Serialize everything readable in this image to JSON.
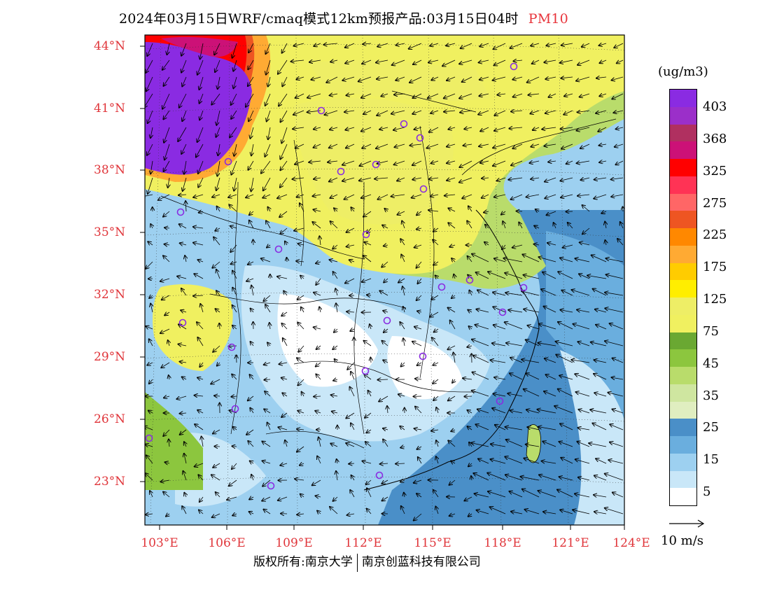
{
  "title": {
    "main": "2024年03月15日WRF/cmaq模式12km预报产品:03月15日04时",
    "product": "PM10"
  },
  "axes": {
    "lat_labels": [
      "44°N",
      "41°N",
      "38°N",
      "35°N",
      "32°N",
      "29°N",
      "26°N",
      "23°N"
    ],
    "lon_labels": [
      "103°E",
      "106°E",
      "109°E",
      "112°E",
      "115°E",
      "118°E",
      "121°E",
      "124°E"
    ]
  },
  "colorbar": {
    "unit": "(ug/m3)",
    "labels": [
      "403",
      "368",
      "325",
      "275",
      "225",
      "175",
      "125",
      "75",
      "45",
      "35",
      "25",
      "15",
      "5"
    ],
    "colors": [
      "#8a2be2",
      "#9b2fc9",
      "#b03060",
      "#cc1177",
      "#ff0000",
      "#ff3355",
      "#ff6666",
      "#ee5522",
      "#ff8800",
      "#ffaa33",
      "#ffcc00",
      "#ffee00",
      "#eeee66",
      "#f0f060",
      "#6aa832",
      "#8cc63e",
      "#b9dc6b",
      "#cfe6a0",
      "#e0eec0",
      "#4a8fc8",
      "#6aaede",
      "#9dd0f0",
      "#c9e7f8",
      "#ffffff"
    ]
  },
  "wind_legend": {
    "label": "10 m/s"
  },
  "footer": {
    "left": "版权所有:南京大学",
    "right": "南京创蓝科技有限公司"
  },
  "stations_count": 24
}
